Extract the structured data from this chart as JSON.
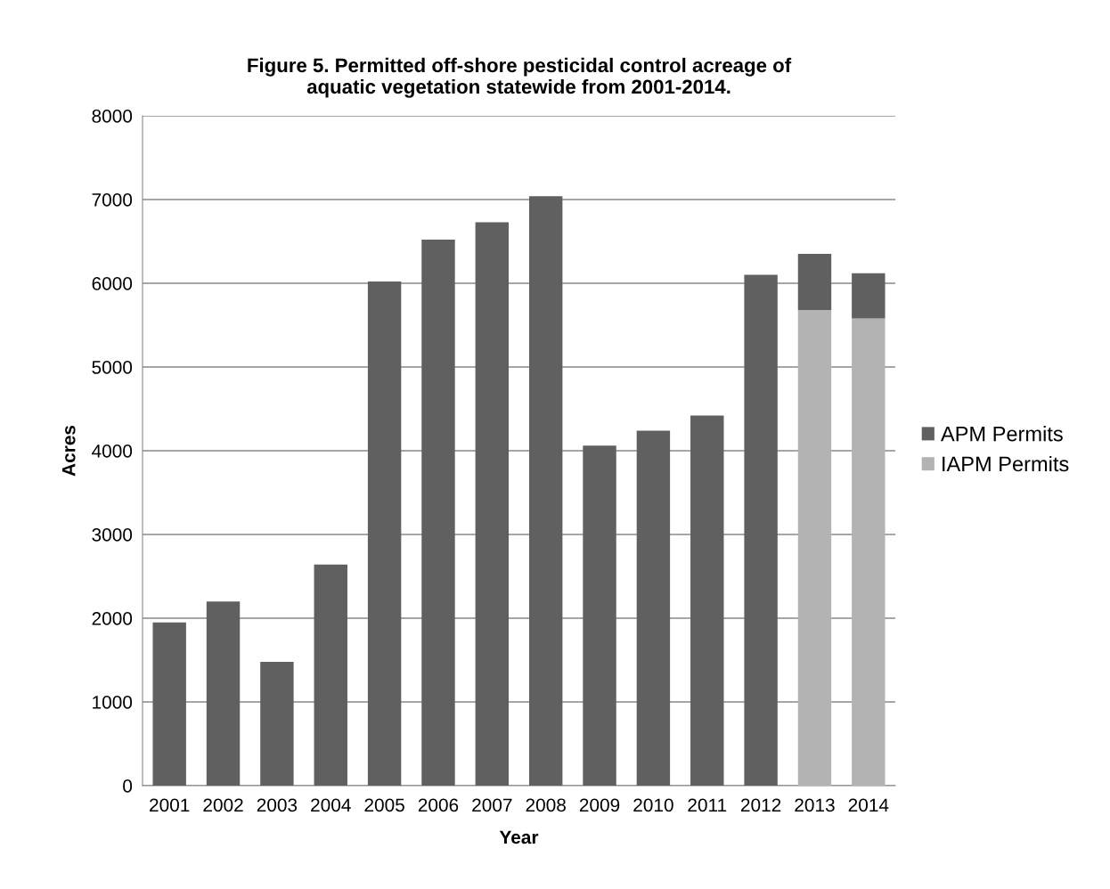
{
  "chart_data": {
    "type": "bar",
    "title": "Figure 5. Permitted off-shore pesticidal control acreage of\naquatic vegetation statewide from 2001-2014.",
    "xlabel": "Year",
    "ylabel": "Acres",
    "categories": [
      "2001",
      "2002",
      "2003",
      "2004",
      "2005",
      "2006",
      "2007",
      "2008",
      "2009",
      "2010",
      "2011",
      "2012",
      "2013",
      "2014"
    ],
    "stacked": true,
    "series": [
      {
        "name": "IAPM Permits",
        "color": "#b3b3b3",
        "values": [
          0,
          0,
          0,
          0,
          0,
          0,
          0,
          0,
          0,
          0,
          0,
          0,
          5680,
          5580
        ]
      },
      {
        "name": "APM Permits",
        "color": "#606060",
        "values": [
          1950,
          2200,
          1480,
          2640,
          6020,
          6520,
          6730,
          7040,
          4060,
          4240,
          4420,
          6100,
          670,
          540
        ]
      }
    ],
    "ylim": [
      0,
      8000
    ],
    "yticks": [
      0,
      1000,
      2000,
      3000,
      4000,
      5000,
      6000,
      7000,
      8000
    ],
    "grid": "y",
    "legend": "right"
  }
}
